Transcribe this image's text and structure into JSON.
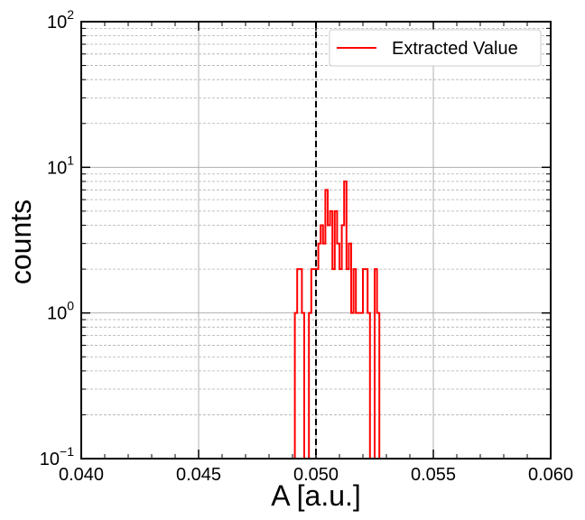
{
  "chart_data": {
    "type": "step",
    "xlabel": "A [a.u.]",
    "ylabel": "counts",
    "xlim": [
      0.04,
      0.06
    ],
    "ylim": [
      0.1,
      100
    ],
    "yscale": "log",
    "grid": true,
    "legend_position": "top-right",
    "x_ticks": [
      "0.040",
      "0.045",
      "0.050",
      "0.055",
      "0.060"
    ],
    "y_ticks": [
      {
        "base": "10",
        "exp": "−1",
        "value": 0.1
      },
      {
        "base": "10",
        "exp": "0",
        "value": 1
      },
      {
        "base": "10",
        "exp": "1",
        "value": 10
      },
      {
        "base": "10",
        "exp": "2",
        "value": 100
      }
    ],
    "reference_line": {
      "x": 0.05,
      "style": "dashed",
      "color": "#000000"
    },
    "series": [
      {
        "name": "Extracted Value",
        "color": "#ff0000",
        "bins": [
          {
            "x": 0.04915,
            "count": 1
          },
          {
            "x": 0.04925,
            "count": 2
          },
          {
            "x": 0.04935,
            "count": 2
          },
          {
            "x": 0.04945,
            "count": 1
          },
          {
            "x": 0.04975,
            "count": 1
          },
          {
            "x": 0.04985,
            "count": 2
          },
          {
            "x": 0.04995,
            "count": 2
          },
          {
            "x": 0.05005,
            "count": 2
          },
          {
            "x": 0.05015,
            "count": 3
          },
          {
            "x": 0.05025,
            "count": 4
          },
          {
            "x": 0.05035,
            "count": 3
          },
          {
            "x": 0.05045,
            "count": 7
          },
          {
            "x": 0.05055,
            "count": 4
          },
          {
            "x": 0.05065,
            "count": 5
          },
          {
            "x": 0.05075,
            "count": 2
          },
          {
            "x": 0.05085,
            "count": 5
          },
          {
            "x": 0.05095,
            "count": 3
          },
          {
            "x": 0.05105,
            "count": 2
          },
          {
            "x": 0.05115,
            "count": 4
          },
          {
            "x": 0.05125,
            "count": 8
          },
          {
            "x": 0.05135,
            "count": 2
          },
          {
            "x": 0.05145,
            "count": 3
          },
          {
            "x": 0.05155,
            "count": 1
          },
          {
            "x": 0.05165,
            "count": 2
          },
          {
            "x": 0.05175,
            "count": 1
          },
          {
            "x": 0.05185,
            "count": 1
          },
          {
            "x": 0.05195,
            "count": 1
          },
          {
            "x": 0.05205,
            "count": 2
          },
          {
            "x": 0.05215,
            "count": 2
          },
          {
            "x": 0.05225,
            "count": 1
          },
          {
            "x": 0.05255,
            "count": 2
          },
          {
            "x": 0.05265,
            "count": 1
          }
        ]
      }
    ]
  }
}
